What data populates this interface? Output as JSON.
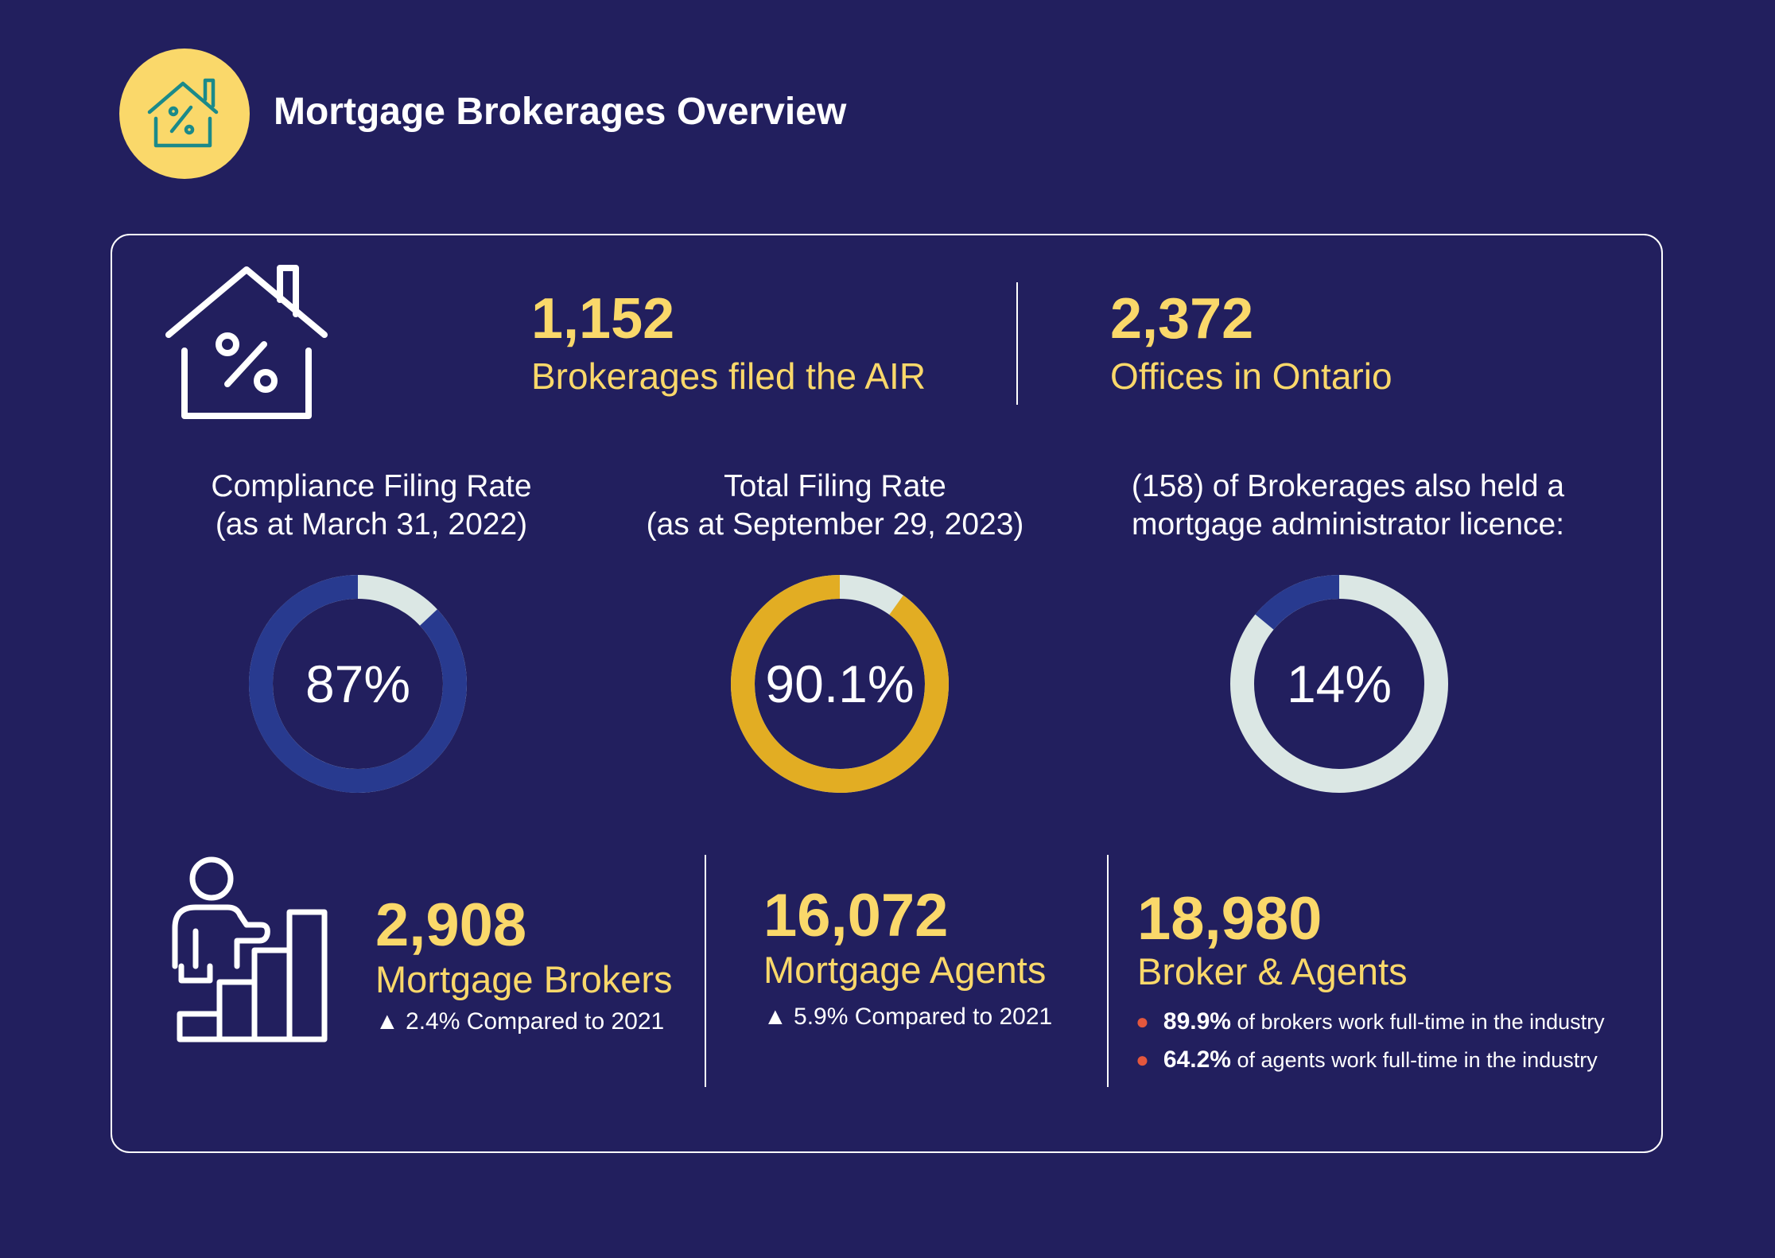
{
  "header": {
    "title": "Mortgage Brokerages Overview",
    "badge_color": "#fad86a",
    "icon": "house-percent-icon"
  },
  "stats_top": {
    "brokerages_value": "1,152",
    "brokerages_label": "Brokerages filed the AIR",
    "offices_value": "2,372",
    "offices_label": "Offices in Ontario"
  },
  "donuts": [
    {
      "caption_line1": "Compliance Filing Rate",
      "caption_line2": "(as at March 31, 2022)",
      "value_label": "87%",
      "percent": 87,
      "fill_color": "#283a8f",
      "rest_color": "#dbe7e4"
    },
    {
      "caption_line1": "Total Filing Rate",
      "caption_line2": "(as at September 29, 2023)",
      "value_label": "90.1%",
      "percent": 90.1,
      "fill_color": "#e2ad23",
      "rest_color": "#dbe7e4"
    },
    {
      "caption_line1": "(158) of Brokerages also held a",
      "caption_line2": "mortgage administrator licence:",
      "value_label": "14%",
      "percent": 14,
      "fill_color": "#283a8f",
      "rest_color": "#dbe7e4"
    }
  ],
  "stats_bottom": {
    "brokers_value": "2,908",
    "brokers_label": "Mortgage Brokers",
    "brokers_change": "▲ 2.4% Compared to 2021",
    "agents_value": "16,072",
    "agents_label": "Mortgage Agents",
    "agents_change": "▲ 5.9% Compared to 2021",
    "total_value": "18,980",
    "total_label": "Broker & Agents",
    "bullet1_strong": "89.9%",
    "bullet1_text": "of brokers work full-time in the industry",
    "bullet2_strong": "64.2%",
    "bullet2_text": "of agents work full-time in the industry"
  },
  "colors": {
    "background": "#221f5e",
    "accent": "#fad86a",
    "bullet": "#e4573d"
  }
}
